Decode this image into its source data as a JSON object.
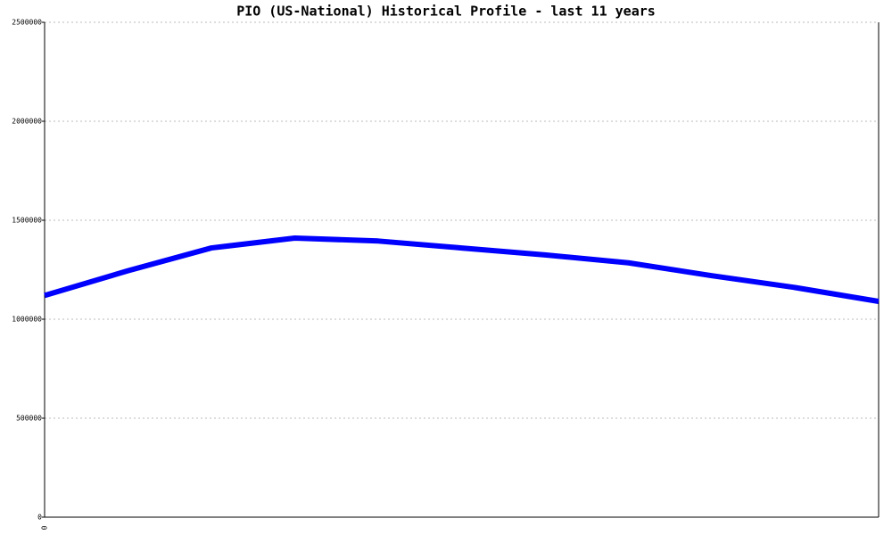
{
  "chart_data": {
    "type": "line",
    "title": "PIO (US-National) Historical Profile - last 11 years",
    "categories": [
      "0",
      null,
      null,
      null,
      null,
      null,
      null,
      null,
      null,
      null,
      null
    ],
    "series": [
      {
        "name": null,
        "color": "#0000ff",
        "values": [
          1120000,
          1245000,
          1360000,
          1410000,
          1395000,
          1360000,
          1325000,
          1285000,
          1220000,
          1160000,
          1090000
        ]
      }
    ],
    "ylim": [
      0,
      2500000
    ],
    "yticks": [
      0,
      500000,
      1000000,
      1500000,
      2000000,
      2500000
    ],
    "grid": true
  }
}
